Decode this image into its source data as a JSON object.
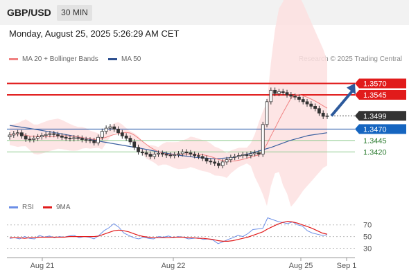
{
  "header": {
    "symbol": "GBP/USD",
    "timeframe": "30 MIN",
    "datetime": "Monday, August 25, 2025 5:26:29 AM CET"
  },
  "legend": {
    "ma20_bollinger": "MA 20 + Bollinger Bands",
    "ma50": "MA 50",
    "copyright": "Research © 2025 Trading Central"
  },
  "rsi_legend": {
    "rsi": "RSI",
    "ma9": "9MA"
  },
  "colors": {
    "red_line": "#e11b1b",
    "blue_line": "#1c4fa3",
    "green_line": "#8cc98c",
    "bollinger_fill": "#fde0e0",
    "ma20": "#f08080",
    "ma50": "#3a5f9f",
    "arrow": "#2d5a9c",
    "rsi": "#6b8ee6",
    "rsi_ma": "#e11b1b",
    "last_price_bg": "#333333"
  },
  "chart_data": {
    "type": "candlestick",
    "title": "GBP/USD 30 MIN",
    "ylim": [
      1.3325,
      1.3595
    ],
    "x_ticks": [
      "Aug 21",
      "Aug 22",
      "Aug 25",
      "Sep 1"
    ],
    "last_price": 1.3499,
    "levels": [
      {
        "label": "1.3570",
        "value": 1.357,
        "kind": "resistance"
      },
      {
        "label": "1.3545",
        "value": 1.3545,
        "kind": "resistance"
      },
      {
        "label": "1.3499",
        "value": 1.3499,
        "kind": "last"
      },
      {
        "label": "1.3470",
        "value": 1.347,
        "kind": "pivot"
      },
      {
        "label": "1.3445",
        "value": 1.3445,
        "kind": "support"
      },
      {
        "label": "1.3420",
        "value": 1.342,
        "kind": "support"
      }
    ],
    "close_series": [
      1.3457,
      1.346,
      1.3462,
      1.3455,
      1.3448,
      1.3447,
      1.345,
      1.3453,
      1.3456,
      1.3458,
      1.346,
      1.3458,
      1.3455,
      1.3452,
      1.345,
      1.3449,
      1.3451,
      1.345,
      1.3447,
      1.3446,
      1.3445,
      1.344,
      1.3452,
      1.3465,
      1.3472,
      1.3475,
      1.347,
      1.3462,
      1.3455,
      1.345,
      1.3442,
      1.343,
      1.342,
      1.3418,
      1.3415,
      1.341,
      1.3415,
      1.3417,
      1.3415,
      1.3413,
      1.3412,
      1.3414,
      1.3416,
      1.342,
      1.3418,
      1.3415,
      1.3412,
      1.341,
      1.3406,
      1.34,
      1.3398,
      1.3395,
      1.339,
      1.3398,
      1.3403,
      1.3408,
      1.341,
      1.3412,
      1.3414,
      1.3412,
      1.3416,
      1.3418,
      1.3415,
      1.348,
      1.353,
      1.3555,
      1.3548,
      1.3552,
      1.355,
      1.3545,
      1.3542,
      1.354,
      1.3535,
      1.353,
      1.3525,
      1.352,
      1.3515,
      1.3505,
      1.3498,
      1.3499
    ],
    "ma50_series": [
      1.3478,
      1.3472,
      1.3465,
      1.3458,
      1.345,
      1.3442,
      1.3435,
      1.3428,
      1.342,
      1.3413,
      1.3408,
      1.3405,
      1.3408,
      1.3418,
      1.343,
      1.3445,
      1.3456,
      1.3462
    ],
    "forecast_arrow": {
      "from": 1.3499,
      "to": 1.357
    },
    "rsi": {
      "ylim": [
        20,
        85
      ],
      "ticks": [
        70,
        50,
        30
      ],
      "rsi_series": [
        47,
        48,
        46,
        50,
        47,
        46,
        52,
        49,
        51,
        48,
        50,
        49,
        51,
        52,
        48,
        50,
        49,
        46,
        52,
        60,
        65,
        72,
        66,
        56,
        52,
        48,
        46,
        49,
        47,
        46,
        50,
        49,
        51,
        48,
        50,
        49,
        46,
        47,
        48,
        45,
        46,
        44,
        38,
        41,
        45,
        48,
        52,
        50,
        55,
        62,
        63,
        64,
        82,
        79,
        76,
        74,
        72,
        75,
        70,
        68,
        60,
        56,
        54,
        52,
        53
      ],
      "ma_series": [
        48,
        48,
        48,
        47,
        48,
        48,
        49,
        49,
        49,
        49,
        49,
        49,
        50,
        50,
        50,
        50,
        50,
        50,
        51,
        54,
        57,
        60,
        61,
        60,
        58,
        55,
        52,
        50,
        49,
        48,
        48,
        48,
        48,
        49,
        49,
        49,
        48,
        48,
        47,
        47,
        46,
        45,
        43,
        42,
        42,
        43,
        45,
        47,
        49,
        52,
        55,
        58,
        63,
        67,
        71,
        74,
        76,
        75,
        73,
        70,
        67,
        64,
        60,
        56,
        54
      ]
    }
  }
}
